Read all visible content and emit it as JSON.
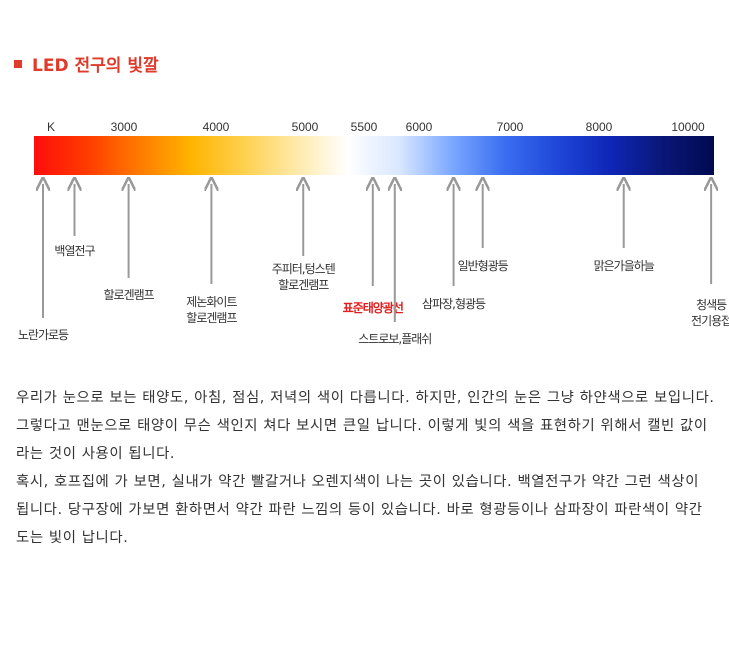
{
  "title": "LED 전구의 빛깔",
  "chart_data": {
    "type": "color-temperature-scale",
    "unit_label": "K",
    "ticks": [
      3000,
      4000,
      5000,
      5500,
      6000,
      7000,
      8000,
      10000
    ],
    "gradient_colors": [
      "#ff0d0d",
      "#ff3a00",
      "#ff7a00",
      "#ffb400",
      "#ffd04d",
      "#ffe9a8",
      "#ffffff",
      "#d8e6ff",
      "#7aa7ff",
      "#3a6ef0",
      "#1f47d9",
      "#0f26b8",
      "#0a1778",
      "#000a50"
    ],
    "annotations": [
      {
        "lines": [
          "노란가로등"
        ],
        "kelvin": 2100,
        "highlight": false
      },
      {
        "lines": [
          "백열전구"
        ],
        "kelvin": 2450,
        "highlight": false
      },
      {
        "lines": [
          "할로겐램프"
        ],
        "kelvin": 3050,
        "highlight": false
      },
      {
        "lines": [
          "제논화이트",
          "할로겐램프"
        ],
        "kelvin": 3950,
        "highlight": false
      },
      {
        "lines": [
          "주피터,텅스텐",
          "할로겐램프"
        ],
        "kelvin": 4980,
        "highlight": false
      },
      {
        "lines": [
          "표준태양광선"
        ],
        "kelvin": 5580,
        "highlight": true
      },
      {
        "lines": [
          "스트로보,플래쉬"
        ],
        "kelvin": 5780,
        "highlight": false
      },
      {
        "lines": [
          "삼파장,형광등"
        ],
        "kelvin": 6380,
        "highlight": false
      },
      {
        "lines": [
          "일반형광등"
        ],
        "kelvin": 6700,
        "highlight": false
      },
      {
        "lines": [
          "맑은가을하늘"
        ],
        "kelvin": 8430,
        "highlight": false
      },
      {
        "lines": [
          "청색등",
          "전기용접"
        ],
        "kelvin": 9950,
        "highlight": false
      }
    ]
  },
  "body": {
    "p1": "우리가 눈으로 보는 태양도, 아침, 점심, 저녁의 색이 다릅니다. 하지만, 인간의 눈은 그냥 하얀색으로 보입니다. 그렇다고 맨눈으로 태양이 무슨 색인지 쳐다 보시면 큰일 납니다. 이렇게 빛의 색을 표현하기 위해서 캘빈 값이라는 것이 사용이 됩니다.",
    "p2": "혹시, 호프집에 가 보면, 실내가 약간 빨갈거나 오렌지색이 나는 곳이 있습니다. 백열전구가 약간 그런 색상이 됩니다. 당구장에 가보면 환하면서 약간 파란 느낌의 등이 있습니다. 바로 형광등이나 삼파장이 파란색이 약간 도는 빛이 납니다."
  }
}
